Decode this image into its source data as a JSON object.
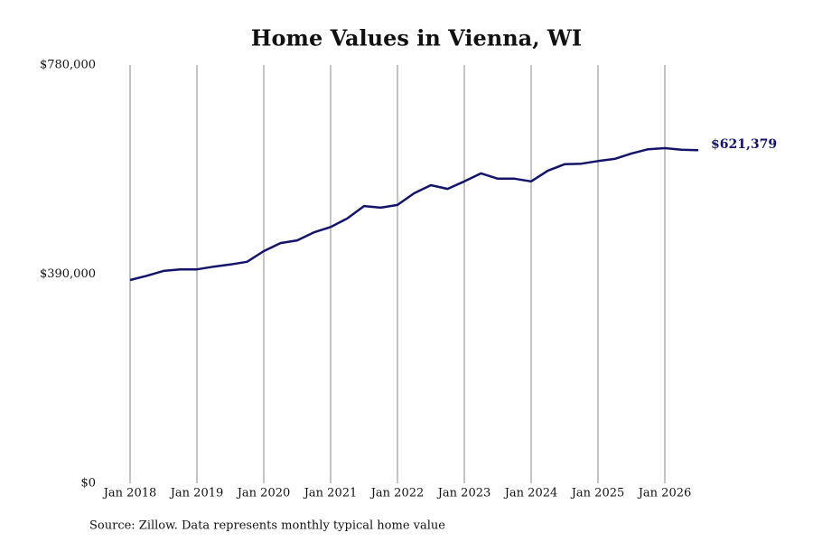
{
  "chart_data": {
    "type": "line",
    "title": "Home Values in Vienna, WI",
    "source": "Source: Zillow. Data represents monthly typical home value",
    "x": [
      "2018-01",
      "2018-04",
      "2018-07",
      "2018-10",
      "2019-01",
      "2019-04",
      "2019-07",
      "2019-10",
      "2020-01",
      "2020-04",
      "2020-07",
      "2020-10",
      "2021-01",
      "2021-04",
      "2021-07",
      "2021-10",
      "2022-01",
      "2022-04",
      "2022-07",
      "2022-10",
      "2023-01",
      "2023-04",
      "2023-07",
      "2023-10",
      "2024-01",
      "2024-04",
      "2024-07",
      "2024-10",
      "2025-01",
      "2025-04",
      "2025-07",
      "2025-10",
      "2026-01",
      "2026-04",
      "2026-07"
    ],
    "series": [
      {
        "name": "Home value",
        "color": "#13136b",
        "values": [
          379000,
          387000,
          396000,
          399000,
          399000,
          404000,
          408000,
          413000,
          433000,
          448000,
          453000,
          468000,
          478000,
          494000,
          517000,
          514000,
          519000,
          541000,
          556000,
          549000,
          563000,
          578000,
          568000,
          568000,
          563000,
          583000,
          595000,
          596000,
          601000,
          605000,
          615000,
          623000,
          625000,
          622000,
          621379
        ],
        "value_labels": {
          "34": "$621,379"
        }
      }
    ],
    "xlim": [
      "2018-01",
      "2026-07"
    ],
    "xticks": [
      {
        "value": "2018-01",
        "label": "Jan 2018"
      },
      {
        "value": "2019-01",
        "label": "Jan 2019"
      },
      {
        "value": "2020-01",
        "label": "Jan 2020"
      },
      {
        "value": "2021-01",
        "label": "Jan 2021"
      },
      {
        "value": "2022-01",
        "label": "Jan 2022"
      },
      {
        "value": "2023-01",
        "label": "Jan 2023"
      },
      {
        "value": "2024-01",
        "label": "Jan 2024"
      },
      {
        "value": "2025-01",
        "label": "Jan 2025"
      },
      {
        "value": "2026-01",
        "label": "Jan 2026"
      }
    ],
    "ylim": [
      0,
      780000
    ],
    "yticks": [
      {
        "value": 0,
        "label": "$0"
      },
      {
        "value": 390000,
        "label": "$390,000"
      },
      {
        "value": 780000,
        "label": "$780,000"
      }
    ],
    "grid": "x"
  }
}
